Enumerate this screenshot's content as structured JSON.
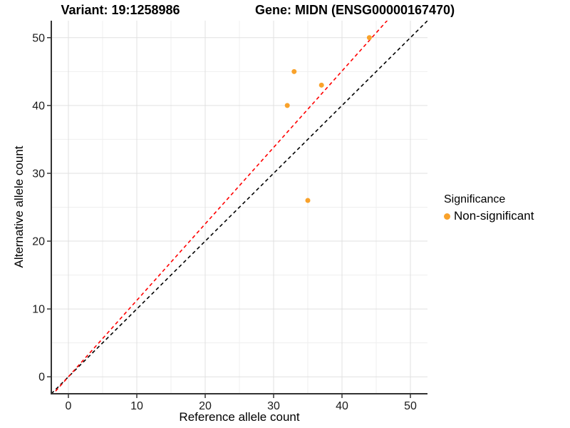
{
  "titles": {
    "variant": "Variant: 19:1258986",
    "gene": "Gene: MIDN (ENSG00000167470)"
  },
  "chart_data": {
    "type": "scatter",
    "xlabel": "Reference allele count",
    "ylabel": "Alternative allele count",
    "xlim": [
      -2.5,
      52.5
    ],
    "ylim": [
      -2.5,
      52.5
    ],
    "xticks": [
      0,
      10,
      20,
      30,
      40,
      50
    ],
    "yticks": [
      0,
      10,
      20,
      30,
      40,
      50
    ],
    "xminor": [
      5,
      15,
      25,
      35,
      45
    ],
    "yminor": [
      5,
      15,
      25,
      35,
      45
    ],
    "grid": "major+minor",
    "colors": {
      "point_orange": "#F9A22B",
      "ratio_line_red": "#FF0000",
      "identity_line_black": "#000000",
      "axis_line": "#333333",
      "grid_major": "#E0E0E0",
      "grid_minor": "#EFEFEF",
      "tick_label": "#1A1A1A"
    },
    "series": [
      {
        "name": "Non-significant",
        "marker": "circle",
        "color": "#F9A22B",
        "points": [
          [
            44,
            50
          ],
          [
            33,
            45
          ],
          [
            37,
            43
          ],
          [
            32,
            40
          ],
          [
            35,
            26
          ]
        ]
      }
    ],
    "lines": [
      {
        "name": "identity-line",
        "slope": 1.0,
        "intercept": 0,
        "style": "dashed",
        "color": "#000000"
      },
      {
        "name": "ratio-line",
        "slope": 1.127,
        "intercept": 0,
        "style": "dashed",
        "color": "#FF0000"
      }
    ],
    "legend": {
      "title": "Significance",
      "position": "right",
      "entries": [
        {
          "label": "Non-significant",
          "color": "#F9A22B",
          "marker": "circle"
        }
      ]
    }
  }
}
